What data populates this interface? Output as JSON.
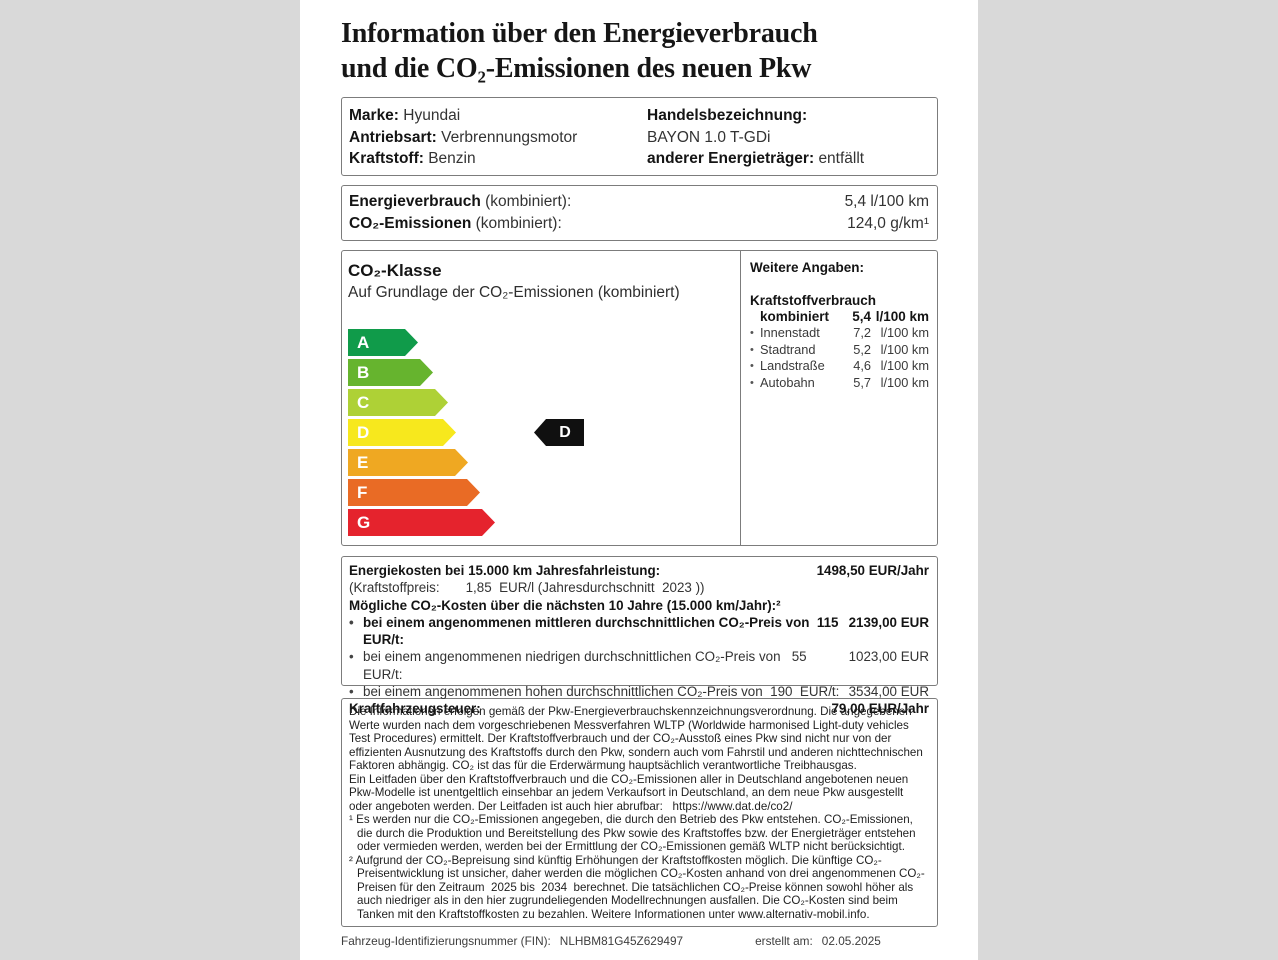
{
  "title": {
    "line1": "Information über den Energieverbrauch",
    "line2": "und die CO₂-Emissionen des neuen Pkw"
  },
  "vehicle": {
    "marke_label": "Marke:",
    "marke_value": "Hyundai",
    "antriebsart_label": "Antriebsart:",
    "antriebsart_value": "Verbrennungsmotor",
    "kraftstoff_label": "Kraftstoff:",
    "kraftstoff_value": "Benzin",
    "handelsbezeichnung_label": "Handelsbezeichnung:",
    "handelsbezeichnung_value": "BAYON 1.0 T-GDi",
    "energietraeger_label": "anderer Energieträger:",
    "energietraeger_value": "entfällt"
  },
  "combined": {
    "verbrauch_label": "Energieverbrauch",
    "verbrauch_suffix": " (kombiniert):",
    "verbrauch_value": "5,4 l/100 km",
    "co2_label": "CO₂-Emissionen",
    "co2_suffix": " (kombiniert):",
    "co2_value": "124,0 g/km¹"
  },
  "co2_class": {
    "title": "CO₂-Klasse",
    "subtitle": "Auf Grundlage der CO₂-Emissionen (kombiniert)",
    "active_class": "D",
    "classes": [
      {
        "label": "A",
        "color": "#109b4a"
      },
      {
        "label": "B",
        "color": "#66b42e"
      },
      {
        "label": "C",
        "color": "#aed136"
      },
      {
        "label": "D",
        "color": "#f7e81d"
      },
      {
        "label": "E",
        "color": "#efa822"
      },
      {
        "label": "F",
        "color": "#e96b25"
      },
      {
        "label": "G",
        "color": "#e5232d"
      }
    ]
  },
  "weitere_angaben": {
    "title": "Weitere Angaben:",
    "section_label": "Kraftstoffverbrauch",
    "rows": [
      {
        "bullet": "",
        "label": "kombiniert",
        "value": "5,4",
        "unit": "l/100 km"
      },
      {
        "bullet": "•",
        "label": "Innenstadt",
        "value": "7,2",
        "unit": "l/100 km"
      },
      {
        "bullet": "•",
        "label": "Stadtrand",
        "value": "5,2",
        "unit": "l/100 km"
      },
      {
        "bullet": "•",
        "label": "Landstraße",
        "value": "4,6",
        "unit": "l/100 km"
      },
      {
        "bullet": "•",
        "label": "Autobahn",
        "value": "5,7",
        "unit": "l/100 km"
      }
    ]
  },
  "costs": {
    "energiekosten_label": "Energiekosten bei 15.000 km Jahresfahrleistung:",
    "energiekosten_value": "1498,50 EUR/Jahr",
    "kraftstoffpreis_line": "(Kraftstoffpreis:       1,85  EUR/l (Jahresdurchschnitt  2023 ))",
    "co2_kosten_heading": "Mögliche CO₂-Kosten über die nächsten 10 Jahre (15.000 km/Jahr):²",
    "rows": [
      {
        "text": "bei einem angenommenen mittleren durchschnittlichen CO₂-Preis von  115  EUR/t:",
        "value": "2139,00 EUR"
      },
      {
        "text": "bei einem angenommenen niedrigen durchschnittlichen CO₂-Preis von   55  EUR/t:",
        "value": "1023,00 EUR"
      },
      {
        "text": "bei einem angenommenen hohen durchschnittlichen CO₂-Preis von  190  EUR/t:",
        "value": "3534,00 EUR"
      }
    ],
    "steuer_label": "Kraftfahrzeugsteuer:",
    "steuer_value": "79,00 EUR/Jahr"
  },
  "fine_print": {
    "p1": "Die Informationen erfolgen gemäß der Pkw-Energieverbrauchskennzeichnungsverordnung. Die angegebenen Werte wurden nach dem vorgeschriebenen Messverfahren WLTP (Worldwide harmonised Light-duty vehicles Test Procedures) ermittelt. Der Kraftstoffverbrauch und der CO₂-Ausstoß eines Pkw sind nicht nur von der effizienten Ausnutzung des Kraftstoffs durch den Pkw, sondern auch vom Fahrstil und anderen nichttechnischen Faktoren abhängig. CO₂ ist das für die Erderwärmung hauptsächlich verantwortliche Treibhausgas.",
    "p2": "Ein Leitfaden über den Kraftstoffverbrauch und die CO₂-Emissionen aller in Deutschland angebotenen neuen Pkw-Modelle ist unentgeltlich einsehbar an jedem Verkaufsort in Deutschland, an dem neue Pkw ausgestellt oder angeboten werden. Der Leitfaden ist auch hier abrufbar:   https://www.dat.de/co2/",
    "p3": "¹ Es werden nur die CO₂-Emissionen angegeben, die durch den Betrieb des Pkw entstehen. CO₂-Emissionen, die durch die Produktion und Bereitstellung des Pkw sowie des Kraftstoffes bzw. der Energieträger entstehen oder vermieden werden, werden bei der Ermittlung der CO₂-Emissionen gemäß WLTP nicht berücksichtigt.",
    "p4": "² Aufgrund der CO₂-Bepreisung sind künftig Erhöhungen der Kraftstoffkosten möglich. Die künftige CO₂-Preisentwicklung ist unsicher, daher werden die möglichen CO₂-Kosten anhand von drei angenommenen CO₂-Preisen für den Zeitraum  2025 bis  2034  berechnet. Die tatsächlichen CO₂-Preise können sowohl höher als auch niedriger als in den hier zugrundeliegenden Modellrechnungen ausfallen. Die CO₂-Kosten sind beim Tanken mit den Kraftstoffkosten zu bezahlen. Weitere Informationen unter www.alternativ-mobil.info."
  },
  "footer": {
    "fin_label": "Fahrzeug-Identifizierungsnummer (FIN):",
    "fin_value": "NLHBM81G45Z629497",
    "created_label": "erstellt am:",
    "created_value": "02.05.2025"
  }
}
